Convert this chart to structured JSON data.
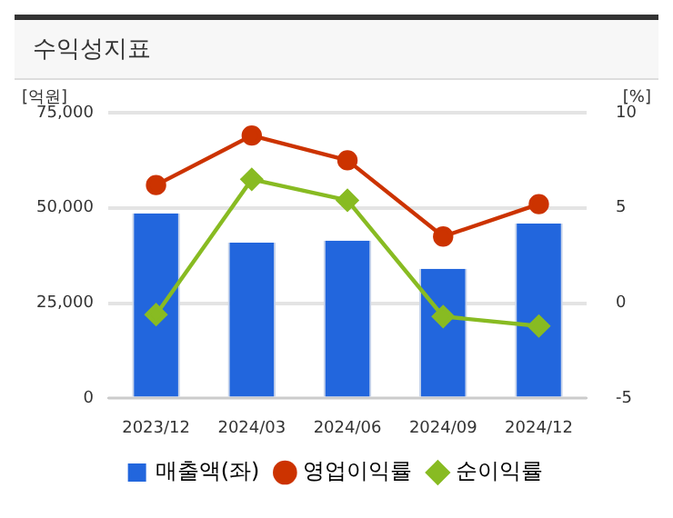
{
  "chart_data": {
    "type": "bar",
    "title": "수익성지표",
    "ylabel": "[억원]",
    "y2label": "[%]",
    "categories": [
      "2023/12",
      "2024/03",
      "2024/06",
      "2024/09",
      "2024/12"
    ],
    "series": [
      {
        "name": "매출액(좌)",
        "color": "#2266dd",
        "values": [
          48600,
          40900,
          41400,
          34000,
          45900
        ]
      },
      {
        "name": "영업이익률",
        "type": "line",
        "axis": "y2",
        "color": "#cc3300",
        "marker": "circle",
        "values": [
          6.2,
          8.8,
          7.5,
          3.5,
          5.2
        ]
      },
      {
        "name": "순이익률",
        "type": "line",
        "axis": "y2",
        "color": "#88bb22",
        "marker": "diamond",
        "values": [
          -0.6,
          6.5,
          5.4,
          -0.7,
          -1.2
        ]
      }
    ],
    "ylim": [
      0,
      75000
    ],
    "yticks": [
      0,
      {
        "value": 25000,
        "label": "25,000"
      },
      {
        "value": 50000,
        "label": "50,000"
      },
      {
        "value": 75000,
        "label": "75,000"
      }
    ],
    "y2lim": [
      -5,
      10
    ],
    "y2ticks": [
      -5,
      0,
      5,
      10
    ],
    "grid": "y",
    "legend": "bottom"
  }
}
